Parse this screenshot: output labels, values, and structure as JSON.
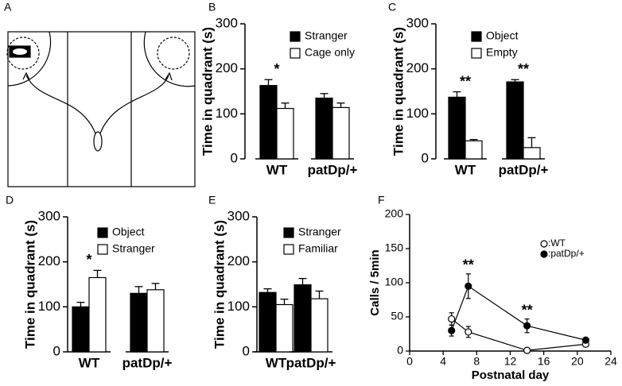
{
  "chart_data": [
    {
      "type": "diagram",
      "label": "A"
    },
    {
      "type": "bar",
      "label": "B",
      "ylabel": "Time in quadrant (s)",
      "categories": [
        "WT",
        "patDp/+"
      ],
      "series": [
        {
          "name": "Stranger",
          "color": "#000000",
          "values": [
            163,
            135
          ],
          "errors": [
            13,
            10
          ]
        },
        {
          "name": "Cage only",
          "color": "#ffffff",
          "values": [
            112,
            114
          ],
          "errors": [
            12,
            10
          ]
        }
      ],
      "annotations": [
        "*",
        null
      ],
      "ylim": [
        0,
        300
      ],
      "yticks": [
        0,
        100,
        200,
        300
      ]
    },
    {
      "type": "bar",
      "label": "C",
      "ylabel": "Time in quadrant (s)",
      "categories": [
        "WT",
        "patDp/+"
      ],
      "series": [
        {
          "name": "Object",
          "color": "#000000",
          "values": [
            137,
            171
          ],
          "errors": [
            12,
            5
          ]
        },
        {
          "name": "Empty",
          "color": "#ffffff",
          "values": [
            40,
            25
          ],
          "errors": [
            3,
            22
          ]
        }
      ],
      "annotations": [
        "**",
        "**"
      ],
      "ylim": [
        0,
        300
      ],
      "yticks": [
        0,
        100,
        200,
        300
      ]
    },
    {
      "type": "bar",
      "label": "D",
      "ylabel": "Time in quadrant (s)",
      "categories": [
        "WT",
        "patDp/+"
      ],
      "series": [
        {
          "name": "Object",
          "color": "#000000",
          "values": [
            100,
            130
          ],
          "errors": [
            10,
            15
          ]
        },
        {
          "name": "Stranger",
          "color": "#ffffff",
          "values": [
            165,
            138
          ],
          "errors": [
            16,
            14
          ]
        }
      ],
      "annotations": [
        "*",
        null
      ],
      "ylim": [
        0,
        300
      ],
      "yticks": [
        0,
        100,
        200,
        300
      ]
    },
    {
      "type": "bar",
      "label": "E",
      "ylabel": "Time in quadrant (s)",
      "categories": [
        "WT",
        "patDp/+"
      ],
      "series": [
        {
          "name": "Stranger",
          "color": "#000000",
          "values": [
            132,
            149
          ],
          "errors": [
            8,
            14
          ]
        },
        {
          "name": "Familiar",
          "color": "#ffffff",
          "values": [
            105,
            118
          ],
          "errors": [
            12,
            17
          ]
        }
      ],
      "annotations": [
        null,
        null
      ],
      "ylim": [
        0,
        300
      ],
      "yticks": [
        0,
        100,
        200,
        300
      ]
    },
    {
      "type": "line",
      "label": "F",
      "xlabel": "Postnatal day",
      "ylabel": "Calls / 5min",
      "x": [
        5,
        7,
        14,
        21
      ],
      "series": [
        {
          "name": ":WT",
          "color": "#ffffff",
          "values": [
            47,
            28,
            1,
            10
          ],
          "errors": [
            9,
            8,
            2,
            3
          ]
        },
        {
          "name": ":patDp/+",
          "color": "#000000",
          "values": [
            30,
            95,
            37,
            16
          ],
          "errors": [
            8,
            18,
            10,
            3
          ]
        }
      ],
      "annotations": [
        null,
        "**",
        "**",
        null
      ],
      "xlim": [
        0,
        24
      ],
      "xticks": [
        0,
        4,
        8,
        12,
        16,
        20,
        24
      ],
      "ylim": [
        0,
        200
      ],
      "yticks": [
        0,
        50,
        100,
        150,
        200
      ]
    }
  ]
}
